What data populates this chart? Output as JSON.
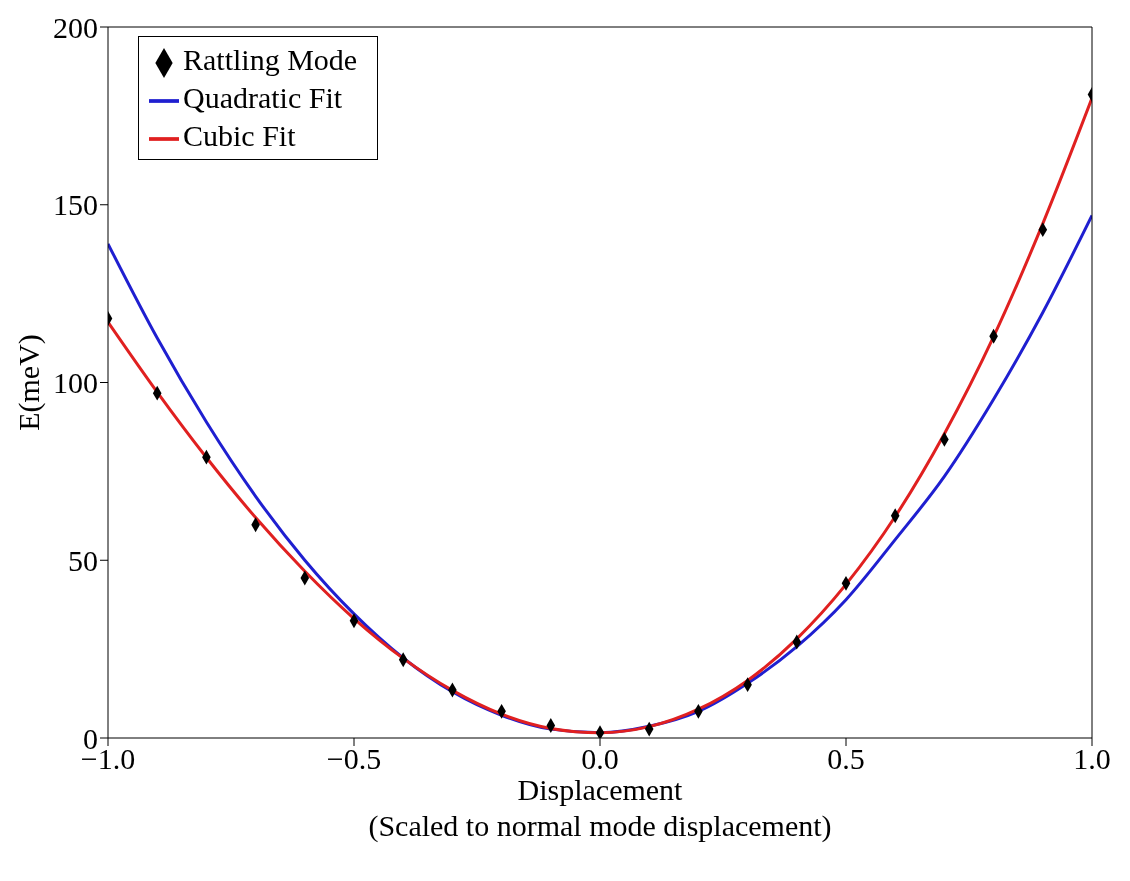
{
  "chart_data": {
    "type": "scatter",
    "xlabel": "Displacement\n(Scaled to normal mode displacement)",
    "ylabel": "E(meV)",
    "xlim": [
      -1,
      1
    ],
    "xticks": [
      {
        "value": -1,
        "label": "−1.0"
      },
      {
        "value": -0.5,
        "label": "−0.5"
      },
      {
        "value": 0,
        "label": "0.0"
      },
      {
        "value": 0.5,
        "label": "0.5"
      },
      {
        "value": 1,
        "label": "1.0"
      }
    ],
    "ylim": [
      0,
      200
    ],
    "yticks": [
      0,
      50,
      100,
      150,
      200
    ],
    "grid": false,
    "legend": "top left",
    "series": [
      {
        "name": "Rattling Mode",
        "marker": "diamond",
        "color": "#000000",
        "x": [
          -1,
          -0.9,
          -0.8,
          -0.7,
          -0.6,
          -0.5,
          -0.4,
          -0.3,
          -0.2,
          -0.1,
          0,
          0.1,
          0.2,
          0.3,
          0.4,
          0.5,
          0.6,
          0.7,
          0.8,
          0.9,
          1
        ],
        "values": [
          118,
          97,
          79,
          60,
          45,
          33,
          22,
          13.5,
          7.5,
          3.5,
          1.5,
          2.5,
          7.5,
          15,
          27,
          43.5,
          62.5,
          84,
          113,
          143,
          181
        ]
      },
      {
        "name": "Quadratic Fit",
        "type": "line",
        "marker": "none",
        "color": "#1f1fd0",
        "x": [
          -1,
          -0.9,
          -0.8,
          -0.7,
          -0.6,
          -0.5,
          -0.4,
          -0.3,
          -0.2,
          -0.1,
          0,
          0.1,
          0.2,
          0.3,
          0.4,
          0.5,
          0.6,
          0.7,
          0.8,
          0.9,
          1
        ],
        "values": [
          139,
          112.5,
          88.9,
          68,
          50,
          34.9,
          22.5,
          13,
          6.4,
          2.5,
          1.5,
          3.3,
          7.5,
          15.4,
          25.7,
          38.9,
          55.8,
          73.6,
          95.3,
          119.7,
          147
        ]
      },
      {
        "name": "Cubic Fit",
        "type": "line",
        "marker": "none",
        "color": "#e02020",
        "x": [
          -1,
          -0.9,
          -0.8,
          -0.7,
          -0.6,
          -0.5,
          -0.4,
          -0.3,
          -0.2,
          -0.1,
          0,
          0.1,
          0.2,
          0.3,
          0.4,
          0.5,
          0.6,
          0.7,
          0.8,
          0.9,
          1
        ],
        "values": [
          117,
          97.3,
          78.9,
          62,
          46.9,
          33.6,
          22.4,
          13.4,
          6.7,
          2.7,
          1.5,
          3.2,
          8.1,
          16.2,
          27.9,
          43.2,
          62.3,
          85.6,
          112.9,
          144.7,
          180
        ]
      }
    ]
  }
}
